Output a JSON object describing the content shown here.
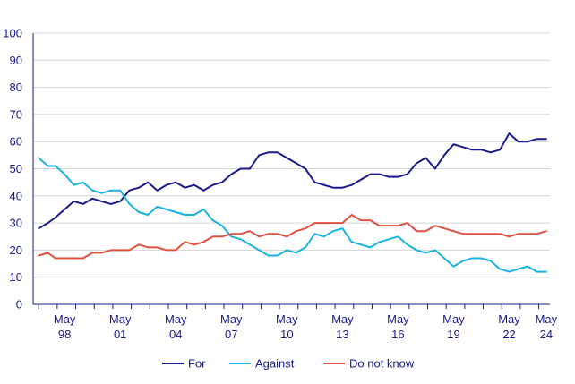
{
  "chart_data": {
    "type": "line",
    "title": "",
    "xlabel": "",
    "ylabel": "",
    "ylim": [
      0,
      100
    ],
    "xlim": [
      1996.7,
      2024.6
    ],
    "y_ticks": [
      0,
      10,
      20,
      30,
      40,
      50,
      60,
      70,
      80,
      90,
      100
    ],
    "y_tick_labels": [
      "0",
      "10",
      "20",
      "30",
      "40",
      "50",
      "60",
      "70",
      "80",
      "90",
      "100"
    ],
    "x_ticks": [
      {
        "pos": 1998.4,
        "line1": "May",
        "line2": "98"
      },
      {
        "pos": 2001.4,
        "line1": "May",
        "line2": "01"
      },
      {
        "pos": 2004.4,
        "line1": "May",
        "line2": "04"
      },
      {
        "pos": 2007.4,
        "line1": "May",
        "line2": "07"
      },
      {
        "pos": 2010.4,
        "line1": "May",
        "line2": "10"
      },
      {
        "pos": 2013.4,
        "line1": "May",
        "line2": "13"
      },
      {
        "pos": 2016.4,
        "line1": "May",
        "line2": "16"
      },
      {
        "pos": 2019.4,
        "line1": "May",
        "line2": "19"
      },
      {
        "pos": 2022.4,
        "line1": "May",
        "line2": "22"
      },
      {
        "pos": 2024.4,
        "line1": "May",
        "line2": "24"
      }
    ],
    "grid": true,
    "legend_position": "bottom",
    "x": [
      1997.0,
      1997.5,
      1997.9,
      1998.4,
      1998.9,
      1999.4,
      1999.9,
      2000.4,
      2000.9,
      2001.4,
      2001.9,
      2002.4,
      2002.9,
      2003.4,
      2003.9,
      2004.4,
      2004.9,
      2005.4,
      2005.9,
      2006.4,
      2006.9,
      2007.4,
      2007.9,
      2008.4,
      2008.9,
      2009.4,
      2009.9,
      2010.4,
      2010.9,
      2011.4,
      2011.9,
      2012.4,
      2012.9,
      2013.4,
      2013.9,
      2014.4,
      2014.9,
      2015.4,
      2015.9,
      2016.4,
      2016.9,
      2017.4,
      2017.9,
      2018.4,
      2018.9,
      2019.4,
      2019.9,
      2020.4,
      2020.9,
      2021.4,
      2021.9,
      2022.4,
      2022.9,
      2023.4,
      2023.9,
      2024.4
    ],
    "series": [
      {
        "name": "For",
        "color": "#1a1a8c",
        "values": [
          28,
          30,
          32,
          35,
          38,
          37,
          39,
          38,
          37,
          38,
          42,
          43,
          45,
          42,
          44,
          45,
          43,
          44,
          42,
          44,
          45,
          48,
          50,
          50,
          55,
          56,
          56,
          54,
          52,
          50,
          45,
          44,
          43,
          43,
          44,
          46,
          48,
          48,
          47,
          47,
          48,
          52,
          54,
          50,
          55,
          59,
          58,
          57,
          57,
          56,
          57,
          63,
          60,
          60,
          61,
          61
        ]
      },
      {
        "name": "Against",
        "color": "#1ab2e0",
        "values": [
          54,
          51,
          51,
          48,
          44,
          45,
          42,
          41,
          42,
          42,
          37,
          34,
          33,
          36,
          35,
          34,
          33,
          33,
          35,
          31,
          29,
          25,
          24,
          22,
          20,
          18,
          18,
          20,
          19,
          21,
          26,
          25,
          27,
          28,
          23,
          22,
          21,
          23,
          24,
          25,
          22,
          20,
          19,
          20,
          17,
          14,
          16,
          17,
          17,
          16,
          13,
          12,
          13,
          14,
          12,
          12
        ]
      },
      {
        "name": "Do not know",
        "color": "#e05040",
        "values": [
          18,
          19,
          17,
          17,
          17,
          17,
          19,
          19,
          20,
          20,
          20,
          22,
          21,
          21,
          20,
          20,
          23,
          22,
          23,
          25,
          25,
          26,
          26,
          27,
          25,
          26,
          26,
          25,
          27,
          28,
          30,
          30,
          30,
          30,
          33,
          31,
          31,
          29,
          29,
          29,
          30,
          27,
          27,
          29,
          28,
          27,
          26,
          26,
          26,
          26,
          26,
          25,
          26,
          26,
          26,
          27
        ]
      }
    ]
  }
}
